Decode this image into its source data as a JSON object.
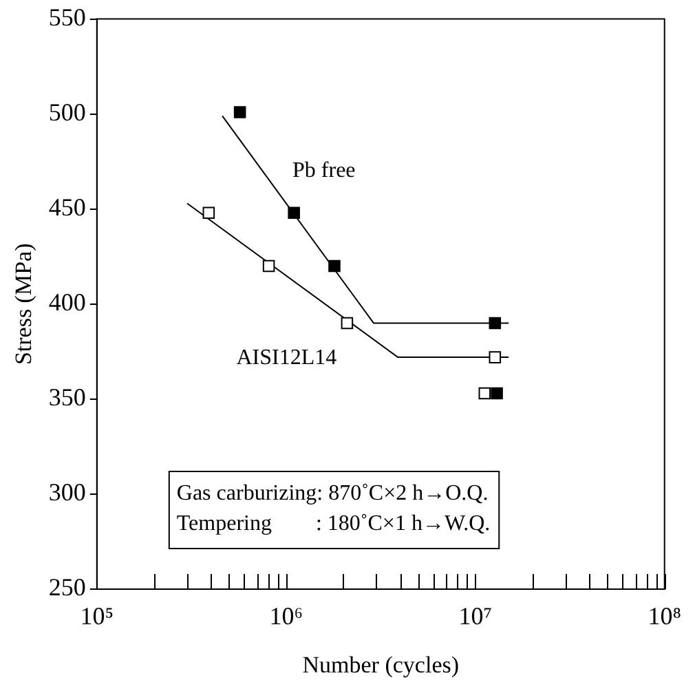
{
  "chart_data": {
    "type": "scatter",
    "xlabel": "Number (cycles)",
    "ylabel": "Stress (MPa)",
    "log": "x",
    "xlim": [
      100000,
      100000000
    ],
    "xticks": [
      {
        "value": 100000,
        "label": "10⁵"
      },
      {
        "value": 200000,
        "label": null
      },
      {
        "value": 300000,
        "label": null
      },
      {
        "value": 400000,
        "label": null
      },
      {
        "value": 500000,
        "label": null
      },
      {
        "value": 600000,
        "label": null
      },
      {
        "value": 700000,
        "label": null
      },
      {
        "value": 800000,
        "label": null
      },
      {
        "value": 900000,
        "label": null
      },
      {
        "value": 1000000,
        "label": "10⁶"
      },
      {
        "value": 2000000,
        "label": null
      },
      {
        "value": 3000000,
        "label": null
      },
      {
        "value": 4000000,
        "label": null
      },
      {
        "value": 5000000,
        "label": null
      },
      {
        "value": 6000000,
        "label": null
      },
      {
        "value": 7000000,
        "label": null
      },
      {
        "value": 8000000,
        "label": null
      },
      {
        "value": 9000000,
        "label": null
      },
      {
        "value": 10000000,
        "label": "10⁷"
      },
      {
        "value": 20000000,
        "label": null
      },
      {
        "value": 30000000,
        "label": null
      },
      {
        "value": 40000000,
        "label": null
      },
      {
        "value": 50000000,
        "label": null
      },
      {
        "value": 60000000,
        "label": null
      },
      {
        "value": 70000000,
        "label": null
      },
      {
        "value": 80000000,
        "label": null
      },
      {
        "value": 90000000,
        "label": null
      },
      {
        "value": 100000000,
        "label": "10⁸"
      }
    ],
    "ylim": [
      250,
      550
    ],
    "yticks": [
      250,
      300,
      350,
      400,
      450,
      500,
      550
    ],
    "legend": false,
    "series": [
      {
        "type": "line",
        "color": "#000000",
        "marker": "none",
        "x": [
          460000,
          2900000,
          15000000
        ],
        "values": [
          499,
          390,
          390
        ]
      },
      {
        "type": "line",
        "color": "#000000",
        "marker": "none",
        "x": [
          300000,
          3900000,
          15000000
        ],
        "values": [
          453,
          372,
          372
        ]
      },
      {
        "color": "#000000",
        "marker": "square",
        "x": [
          570000,
          1100000,
          1800000,
          12700000,
          13000000
        ],
        "values": [
          501,
          448,
          420,
          390,
          353
        ]
      },
      {
        "color": "#ffffff",
        "marker": "square",
        "x": [
          390000,
          810000,
          2100000,
          12700000,
          11200000
        ],
        "values": [
          448,
          420,
          390,
          372,
          353
        ]
      }
    ],
    "annotations": [
      "Pb free",
      "AISI12L14",
      "Gas carburizing: 870˚C×2 h→O.Q.",
      "Tempering        : 180˚C×1 h→W.Q."
    ]
  }
}
